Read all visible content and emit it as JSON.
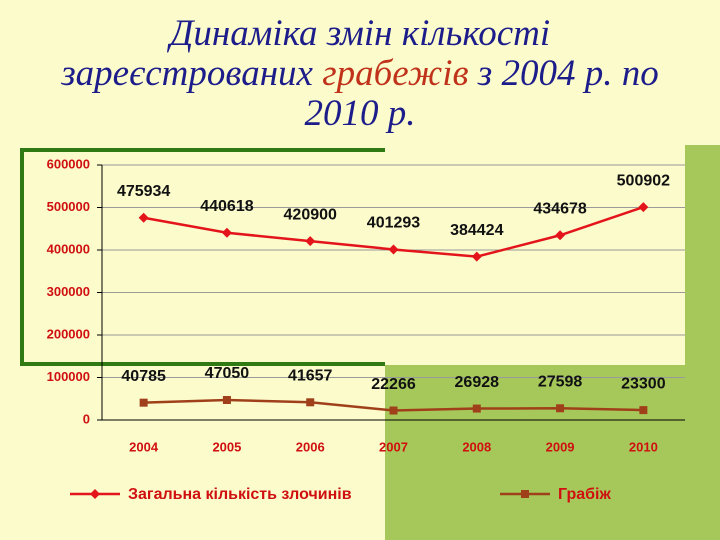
{
  "chart_data": {
    "type": "line",
    "title": [
      "Динаміка змін кількості",
      "зареєстрованих ",
      "грабежів",
      " з 2004 р. по",
      "2010 р."
    ],
    "categories": [
      "2004",
      "2005",
      "2006",
      "2007",
      "2008",
      "2009",
      "2010"
    ],
    "series": [
      {
        "name": "Загальна кількість злочинів",
        "color": "#e4141b",
        "marker": "diamond",
        "values": [
          475934,
          440618,
          420900,
          401293,
          384424,
          434678,
          500902
        ]
      },
      {
        "name": "Грабіж",
        "color": "#a0401a",
        "marker": "square",
        "values": [
          40785,
          47050,
          41657,
          22266,
          26928,
          27598,
          23300
        ]
      }
    ],
    "ylim": [
      0,
      600000
    ],
    "yticks": [
      0,
      100000,
      200000,
      300000,
      400000,
      500000,
      600000
    ],
    "grid": true,
    "legend": "bottom"
  }
}
